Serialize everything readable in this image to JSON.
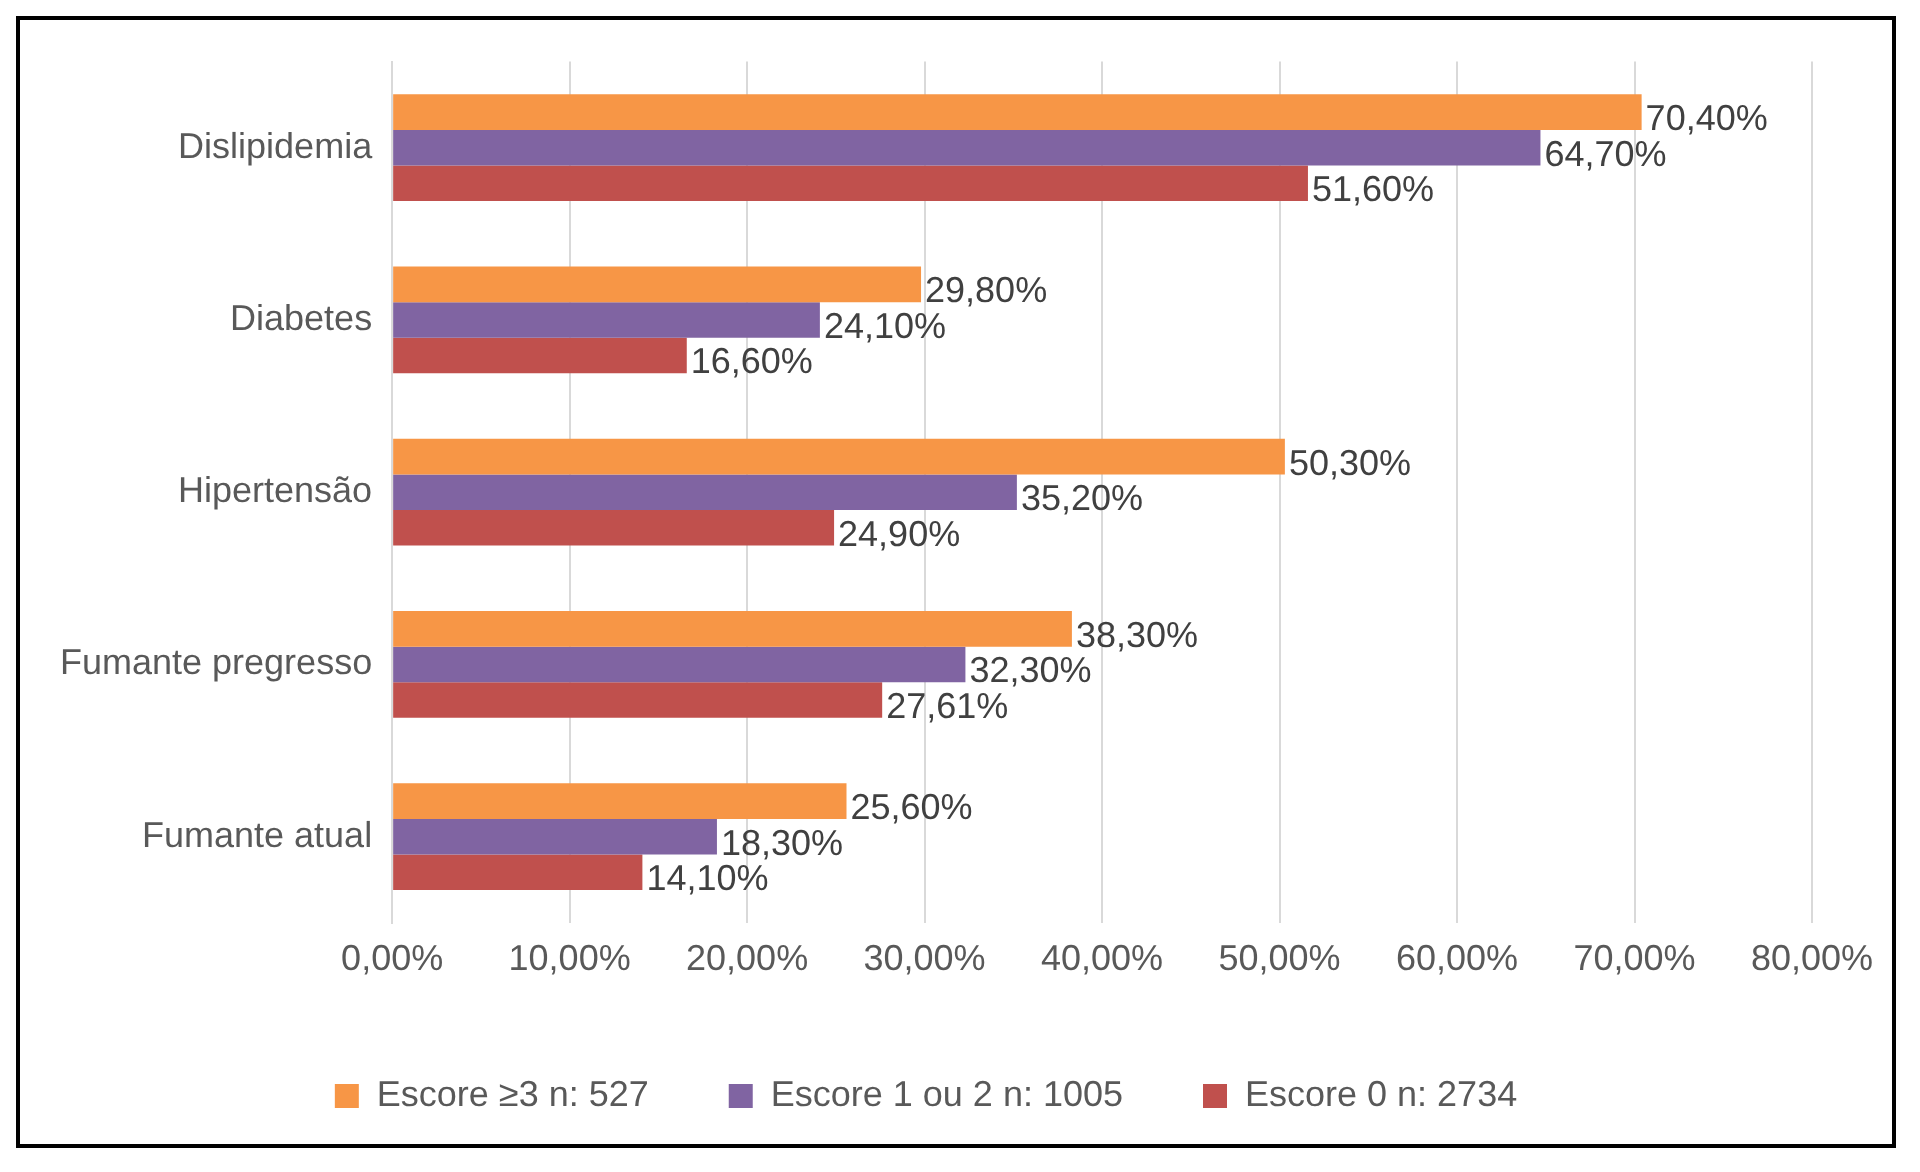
{
  "chart_data": {
    "type": "bar",
    "orientation": "horizontal",
    "categories": [
      "Dislipidemia",
      "Diabetes",
      "Hipertensão",
      "Fumante pregresso",
      "Fumante atual"
    ],
    "series": [
      {
        "name": "Escore ≥3 n: 527",
        "color": "#f79646",
        "values": [
          70.4,
          29.8,
          50.3,
          38.3,
          25.6
        ],
        "value_labels": [
          "70,40%",
          "29,80%",
          "50,30%",
          "38,30%",
          "25,60%"
        ]
      },
      {
        "name": "Escore 1 ou 2 n: 1005",
        "color": "#8064a2",
        "values": [
          64.7,
          24.1,
          35.2,
          32.3,
          18.3
        ],
        "value_labels": [
          "64,70%",
          "24,10%",
          "35,20%",
          "32,30%",
          "18,30%"
        ]
      },
      {
        "name": "Escore 0 n: 2734",
        "color": "#c0504d",
        "values": [
          51.6,
          16.6,
          24.9,
          27.61,
          14.1
        ],
        "value_labels": [
          "51,60%",
          "16,60%",
          "24,90%",
          "27,61%",
          "14,10%"
        ]
      }
    ],
    "xlim": [
      0,
      80
    ],
    "xticks": [
      {
        "value": 0,
        "label": "0,00%"
      },
      {
        "value": 10,
        "label": "10,00%"
      },
      {
        "value": 20,
        "label": "20,00%"
      },
      {
        "value": 30,
        "label": "30,00%"
      },
      {
        "value": 40,
        "label": "40,00%"
      },
      {
        "value": 50,
        "label": "50,00%"
      },
      {
        "value": 60,
        "label": "60,00%"
      },
      {
        "value": 70,
        "label": "70,00%"
      },
      {
        "value": 80,
        "label": "80,00%"
      }
    ],
    "grid": "x",
    "legend": "bottom"
  }
}
